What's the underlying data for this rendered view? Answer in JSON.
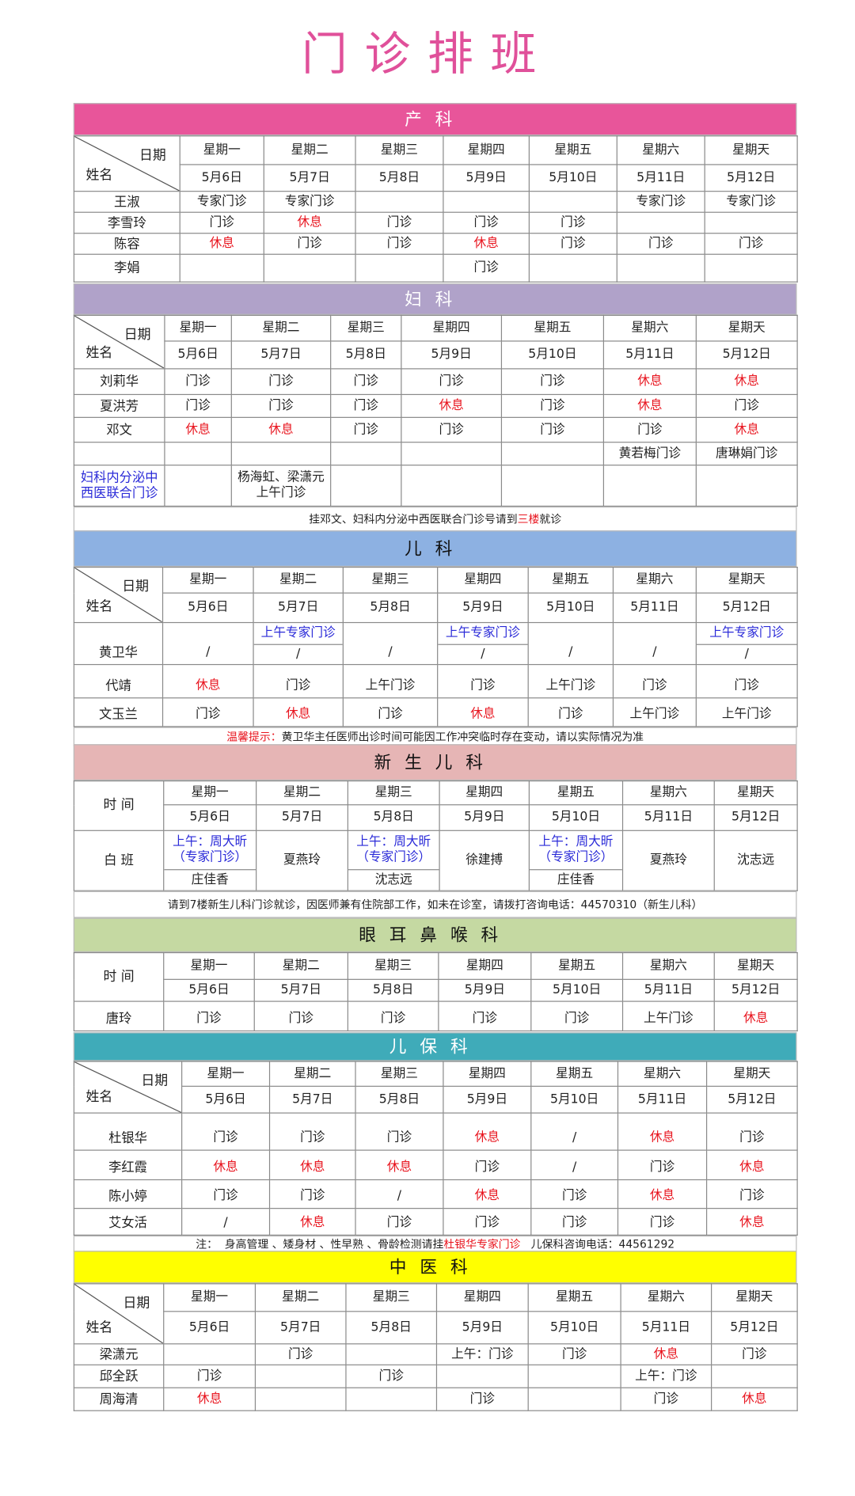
{
  "title": "门诊排班",
  "colors": {
    "rest": "#e8141e",
    "highlight": "#2a2ad8",
    "title": "#e0509a"
  },
  "sections": [
    {
      "title": "产科",
      "header_bg": "#e8559a",
      "header_fg": "#ffffff",
      "corner": {
        "top": "日期",
        "bottom": "姓名"
      },
      "weekdays": [
        "星期一",
        "星期二",
        "星期三",
        "星期四",
        "星期五",
        "星期六",
        "星期天"
      ],
      "dates": [
        "5月6日",
        "5月7日",
        "5月8日",
        "5月9日",
        "5月10日",
        "5月11日",
        "5月12日"
      ],
      "rows": [
        {
          "name": "王淑",
          "cells": [
            "专家门诊",
            "专家门诊",
            "",
            "",
            "",
            "专家门诊",
            "专家门诊"
          ]
        },
        {
          "name": "李雪玲",
          "cells": [
            "门诊",
            "休息",
            "门诊",
            "门诊",
            "门诊",
            "",
            ""
          ]
        },
        {
          "name": "陈容",
          "cells": [
            "休息",
            "门诊",
            "门诊",
            "休息",
            "门诊",
            "门诊",
            "门诊"
          ]
        },
        {
          "name": "李娟",
          "cells": [
            "",
            "",
            "",
            "门诊",
            "",
            "",
            ""
          ]
        }
      ]
    },
    {
      "title": "妇科",
      "header_bg": "#b0a2c9",
      "header_fg": "#ffffff",
      "corner": {
        "top": "日期",
        "bottom": "姓名"
      },
      "weekdays": [
        "星期一",
        "星期二",
        "星期三",
        "星期四",
        "星期五",
        "星期六",
        "星期天"
      ],
      "dates": [
        "5月6日",
        "5月7日",
        "5月8日",
        "5月9日",
        "5月10日",
        "5月11日",
        "5月12日"
      ],
      "rows": [
        {
          "name": "刘莉华",
          "cells": [
            "门诊",
            "门诊",
            "门诊",
            "门诊",
            "门诊",
            "休息",
            "休息"
          ]
        },
        {
          "name": "夏洪芳",
          "cells": [
            "门诊",
            "门诊",
            "门诊",
            "休息",
            "门诊",
            "休息",
            "门诊"
          ]
        },
        {
          "name": "邓文",
          "cells": [
            "休息",
            "休息",
            "门诊",
            "门诊",
            "门诊",
            "门诊",
            "休息"
          ]
        },
        {
          "name": "",
          "cells": [
            "",
            "",
            "",
            "",
            "",
            "黄若梅门诊",
            "唐琳娟门诊"
          ]
        },
        {
          "name": "妇科内分泌中\n西医联合门诊",
          "name_hl": true,
          "cells": [
            "",
            "杨海虹、梁潇元\n上午门诊",
            "",
            "",
            "",
            "",
            ""
          ]
        }
      ],
      "note": [
        {
          "text": "挂邓文、妇科内分泌中西医联合门诊号请到"
        },
        {
          "text": "三楼",
          "red": true
        },
        {
          "text": "就诊"
        }
      ]
    },
    {
      "title": "儿科",
      "header_bg": "#8db1e2",
      "header_fg": "#111111",
      "corner": {
        "top": "日期",
        "bottom": "姓名"
      },
      "weekdays": [
        "星期一",
        "星期二",
        "星期三",
        "星期四",
        "星期五",
        "星期六",
        "星期天"
      ],
      "dates": [
        "5月6日",
        "5月7日",
        "5月8日",
        "5月9日",
        "5月10日",
        "5月11日",
        "5月12日"
      ],
      "rows": [
        {
          "name": "黄卫华",
          "cells": [
            "/",
            {
              "top": "上午专家门诊",
              "top_hl": true,
              "bottom": "/"
            },
            "/",
            {
              "top": "上午专家门诊",
              "top_hl": true,
              "bottom": "/"
            },
            "/",
            "/",
            {
              "top": "上午专家门诊",
              "top_hl": true,
              "bottom": "/"
            }
          ]
        },
        {
          "name": "代靖",
          "cells": [
            "休息",
            "门诊",
            "上午门诊",
            "门诊",
            "上午门诊",
            "门诊",
            "门诊"
          ]
        },
        {
          "name": "文玉兰",
          "cells": [
            "门诊",
            "休息",
            "门诊",
            "休息",
            "门诊",
            "上午门诊",
            "上午门诊"
          ]
        }
      ],
      "note": [
        {
          "text": "温馨提示：",
          "red": true
        },
        {
          "text": "黄卫华主任医师出诊时间可能因工作冲突临时存在变动，请以实际情况为准"
        }
      ]
    },
    {
      "title": "新生儿科",
      "header_bg": "#e6b5b5",
      "header_fg": "#111111",
      "corner": {
        "label": "时 间"
      },
      "weekdays": [
        "星期一",
        "星期二",
        "星期三",
        "星期四",
        "星期五",
        "星期六",
        "星期天"
      ],
      "dates": [
        "5月6日",
        "5月7日",
        "5月8日",
        "5月9日",
        "5月10日",
        "5月11日",
        "5月12日"
      ],
      "rows": [
        {
          "name": "白 班",
          "cells": [
            {
              "top": "上午：周大昕\n（专家门诊）",
              "top_hl": true,
              "bottom": "庄佳香"
            },
            "夏燕玲",
            {
              "top": "上午：周大昕\n（专家门诊）",
              "top_hl": true,
              "bottom": "沈志远"
            },
            "徐建搏",
            {
              "top": "上午：周大昕\n（专家门诊）",
              "top_hl": true,
              "bottom": "庄佳香"
            },
            "夏燕玲",
            "沈志远"
          ]
        }
      ],
      "note": [
        {
          "text": "请到7楼新生儿科门诊就诊，因医师兼有住院部工作，如未在诊室，请拨打咨询电话：44570310（新生儿科）"
        }
      ]
    },
    {
      "title": "眼耳鼻喉科",
      "header_bg": "#c5d9a2",
      "header_fg": "#111111",
      "corner": {
        "label": "时 间"
      },
      "weekdays": [
        "星期一",
        "星期二",
        "星期三",
        "星期四",
        "星期五",
        "星期六",
        "星期天"
      ],
      "dates": [
        "5月6日",
        "5月7日",
        "5月8日",
        "5月9日",
        "5月10日",
        "5月11日",
        "5月12日"
      ],
      "rows": [
        {
          "name": "唐玲",
          "cells": [
            "门诊",
            "门诊",
            "门诊",
            "门诊",
            "门诊",
            "上午门诊",
            "休息"
          ]
        }
      ]
    },
    {
      "title": "儿保科",
      "header_bg": "#3fabb9",
      "header_fg": "#ffffff",
      "corner": {
        "top": "日期",
        "bottom": "姓名"
      },
      "weekdays": [
        "星期一",
        "星期二",
        "星期三",
        "星期四",
        "星期五",
        "星期六",
        "星期天"
      ],
      "dates": [
        "5月6日",
        "5月7日",
        "5月8日",
        "5月9日",
        "5月10日",
        "5月11日",
        "5月12日"
      ],
      "rows": [
        {
          "name": "杜银华",
          "cells": [
            "门诊",
            "门诊",
            "门诊",
            "休息",
            "/",
            "休息",
            "门诊"
          ]
        },
        {
          "name": "李红霞",
          "cells": [
            "休息",
            "休息",
            "休息",
            "门诊",
            "/",
            "门诊",
            "休息"
          ]
        },
        {
          "name": "陈小婷",
          "cells": [
            "门诊",
            "门诊",
            "/",
            "休息",
            "门诊",
            "休息",
            "门诊"
          ]
        },
        {
          "name": "艾女活",
          "cells": [
            "/",
            "休息",
            "门诊",
            "门诊",
            "门诊",
            "门诊",
            "休息"
          ]
        }
      ],
      "note": [
        {
          "text": "注：  身高管理 、矮身材 、性早熟 、骨龄检测请挂"
        },
        {
          "text": "杜银华专家门诊",
          "red": true
        },
        {
          "text": "   儿保科咨询电话：44561292"
        }
      ]
    },
    {
      "title": "中医科",
      "header_bg": "#ffff00",
      "header_fg": "#111111",
      "corner": {
        "top": "日期",
        "bottom": "姓名"
      },
      "weekdays": [
        "星期一",
        "星期二",
        "星期三",
        "星期四",
        "星期五",
        "星期六",
        "星期天"
      ],
      "dates": [
        "5月6日",
        "5月7日",
        "5月8日",
        "5月9日",
        "5月10日",
        "5月11日",
        "5月12日"
      ],
      "rows": [
        {
          "name": "梁潇元",
          "cells": [
            "",
            "门诊",
            "",
            "上午：门诊",
            "门诊",
            "休息",
            "门诊"
          ]
        },
        {
          "name": "邱全跃",
          "cells": [
            "门诊",
            "",
            "门诊",
            "",
            "",
            "上午：门诊",
            ""
          ]
        },
        {
          "name": "周海清",
          "cells": [
            "休息",
            "",
            "",
            "门诊",
            "",
            "门诊",
            "休息"
          ]
        }
      ]
    }
  ]
}
